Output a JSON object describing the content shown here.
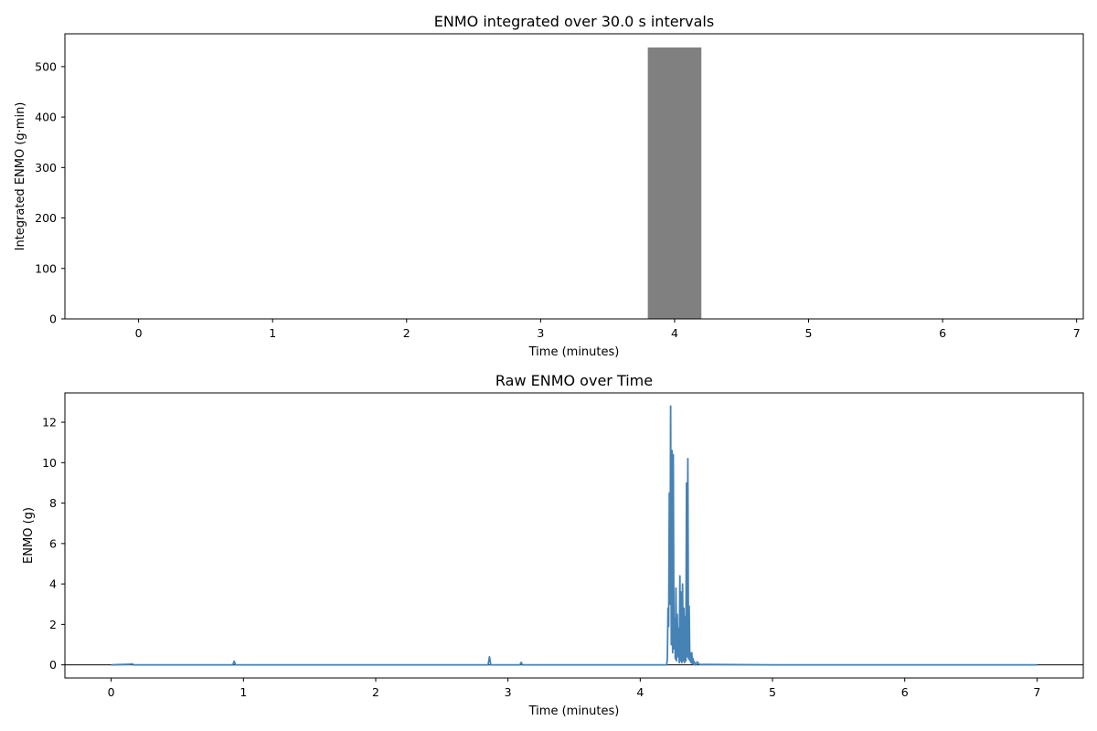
{
  "chart_data": [
    {
      "type": "bar",
      "title": "ENMO integrated over 30.0 s intervals",
      "xlabel": "Time (minutes)",
      "ylabel": "Integrated ENMO (g·min)",
      "xlim": [
        -0.55,
        7.05
      ],
      "ylim": [
        0,
        565
      ],
      "xticks": [
        0,
        1,
        2,
        3,
        4,
        5,
        6,
        7
      ],
      "yticks": [
        0,
        100,
        200,
        300,
        400,
        500
      ],
      "bar_width": 0.4,
      "bars": [
        {
          "x": 4.0,
          "value": 538
        }
      ],
      "colors": {
        "bar": "#808080"
      },
      "grid": false
    },
    {
      "type": "line",
      "title": "Raw ENMO over Time",
      "xlabel": "Time (minutes)",
      "ylabel": "ENMO (g)",
      "xlim": [
        -0.35,
        7.35
      ],
      "ylim": [
        -0.65,
        13.45
      ],
      "xticks": [
        0,
        1,
        2,
        3,
        4,
        5,
        6,
        7
      ],
      "yticks": [
        0,
        2,
        4,
        6,
        8,
        10,
        12
      ],
      "colors": {
        "line": "#4682b4",
        "zero_line": "#000000"
      },
      "grid": false,
      "series": [
        {
          "x": [
            0,
            0.15,
            0.16,
            0.17,
            0.92,
            0.93,
            0.94,
            2.85,
            2.86,
            2.87,
            3.09,
            3.1,
            3.11,
            4.2,
            4.205,
            4.21,
            4.215,
            4.22,
            4.225,
            4.23,
            4.235,
            4.24,
            4.245,
            4.25,
            4.255,
            4.26,
            4.265,
            4.27,
            4.275,
            4.28,
            4.285,
            4.29,
            4.295,
            4.3,
            4.305,
            4.31,
            4.315,
            4.32,
            4.325,
            4.33,
            4.335,
            4.34,
            4.345,
            4.35,
            4.355,
            4.36,
            4.365,
            4.37,
            4.375,
            4.38,
            4.385,
            4.39,
            4.395,
            4.4,
            4.405,
            4.41,
            4.415,
            4.42,
            4.425,
            4.43,
            4.45,
            4.46,
            4.47,
            4.48,
            5.0,
            7.0
          ],
          "values": [
            0,
            0.03,
            0.05,
            0,
            0,
            0.18,
            0,
            0,
            0.4,
            0,
            0,
            0.12,
            0,
            0,
            0.3,
            2.8,
            1.9,
            8.5,
            3.0,
            12.8,
            1.0,
            10.6,
            0.6,
            10.4,
            0.8,
            2.3,
            0.3,
            3.8,
            0.2,
            2.5,
            0.4,
            1.8,
            0.1,
            4.4,
            0.2,
            3.6,
            0.1,
            4.0,
            0.2,
            2.8,
            0.1,
            2.4,
            0.2,
            9.0,
            0.4,
            10.2,
            0.3,
            2.9,
            0.2,
            0.6,
            0.1,
            0.6,
            0.05,
            0.3,
            0.02,
            0.15,
            0,
            0.01,
            0.02,
            0.15,
            0,
            0.02,
            0.01,
            0.02,
            0,
            0
          ]
        }
      ]
    }
  ]
}
